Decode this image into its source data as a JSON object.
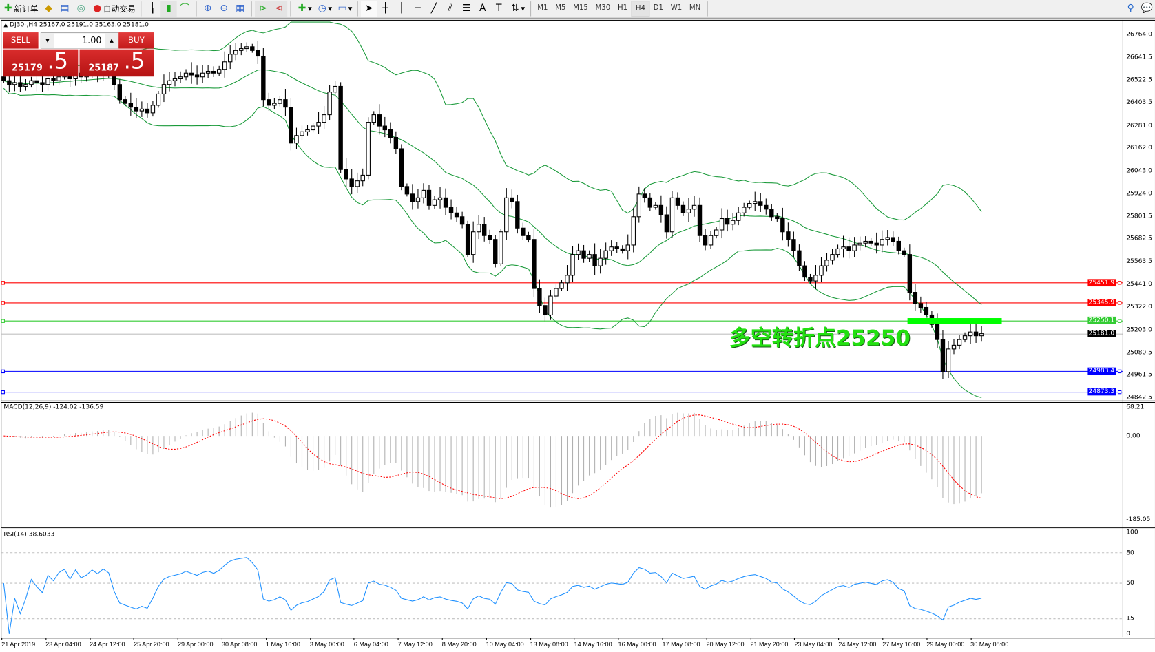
{
  "toolbar": {
    "new_order": "新订单",
    "auto_trading": "自动交易",
    "icons": [
      "new-order-icon",
      "market-watch-icon",
      "navigator-icon",
      "signals-icon",
      "auto-trading-icon",
      "bar-chart-icon",
      "candlestick-icon",
      "line-chart-icon",
      "zoom-in-icon",
      "zoom-out-icon",
      "tile-windows-icon",
      "autoscroll-icon",
      "chart-shift-icon",
      "indicators-icon",
      "periods-icon",
      "templates-icon",
      "cursor-icon",
      "crosshair-icon",
      "vertical-line-icon",
      "horizontal-line-icon",
      "trendline-icon",
      "equidistant-channel-icon",
      "fibonacci-icon",
      "text-icon",
      "text-label-icon",
      "arrows-icon",
      "search-icon",
      "chat-icon"
    ],
    "periods": [
      "M1",
      "M5",
      "M15",
      "M30",
      "H1",
      "H4",
      "D1",
      "W1",
      "MN"
    ],
    "active_period": "H4"
  },
  "chart": {
    "header": "DJ30-,H4  25167.0 25191.0 25163.0 25181.0",
    "trade_panel": {
      "sell": "SELL",
      "buy": "BUY",
      "lot": "1.00",
      "sell_big": "25179",
      "sell_small": ".5",
      "buy_big": "25187",
      "buy_small": ".5"
    },
    "annotation": "多空转折点25250",
    "annotation_color": "#22e010",
    "price_axis": [
      "26764.0",
      "26641.5",
      "26522.5",
      "26403.5",
      "26281.0",
      "26162.0",
      "26043.0",
      "25924.0",
      "25801.5",
      "25682.5",
      "25563.5",
      "25441.0",
      "25322.0",
      "25203.0",
      "25080.5",
      "24961.5",
      "24842.5"
    ],
    "levels": [
      {
        "price": "25451.9",
        "color": "#ff0000"
      },
      {
        "price": "25345.9",
        "color": "#ff0000"
      },
      {
        "price": "25250.1",
        "color": "#33cc33"
      },
      {
        "price": "25181.0",
        "color": "#000000",
        "line": "#c0c0c0"
      },
      {
        "price": "24983.4",
        "color": "#0000ff"
      },
      {
        "price": "24873.3",
        "color": "#0000ff"
      }
    ],
    "bands_color": "#1a9a3a",
    "closes": [
      26520,
      26500,
      26510,
      26490,
      26500,
      26520,
      26510,
      26500,
      26530,
      26520,
      26540,
      26550,
      26530,
      26560,
      26540,
      26550,
      26570,
      26560,
      26580,
      26570,
      26500,
      26420,
      26400,
      26380,
      26360,
      26370,
      26350,
      26390,
      26450,
      26500,
      26520,
      26530,
      26540,
      26560,
      26550,
      26540,
      26560,
      26570,
      26560,
      26580,
      26620,
      26660,
      26680,
      26690,
      26700,
      26680,
      26650,
      26420,
      26390,
      26400,
      26420,
      26380,
      26190,
      26230,
      26250,
      26260,
      26280,
      26300,
      26340,
      26460,
      26490,
      26050,
      26000,
      25960,
      25990,
      26020,
      26300,
      26340,
      26280,
      26260,
      26220,
      26160,
      25960,
      25920,
      25880,
      25900,
      25940,
      25860,
      25890,
      25900,
      25850,
      25820,
      25800,
      25760,
      25600,
      25720,
      25760,
      25700,
      25680,
      25550,
      25720,
      25900,
      25880,
      25740,
      25700,
      25680,
      25420,
      25330,
      25280,
      25380,
      25420,
      25450,
      25490,
      25600,
      25620,
      25580,
      25600,
      25540,
      25580,
      25620,
      25640,
      25630,
      25620,
      25650,
      25800,
      25920,
      25900,
      25850,
      25860,
      25810,
      25720,
      25900,
      25860,
      25820,
      25840,
      25860,
      25700,
      25650,
      25700,
      25730,
      25790,
      25760,
      25780,
      25820,
      25850,
      25870,
      25880,
      25860,
      25840,
      25800,
      25790,
      25720,
      25680,
      25620,
      25540,
      25480,
      25460,
      25490,
      25540,
      25570,
      25600,
      25630,
      25640,
      25620,
      25650,
      25660,
      25670,
      25660,
      25650,
      25680,
      25690,
      25670,
      25620,
      25600,
      25400,
      25340,
      25320,
      25280,
      25230,
      25150,
      24980,
      25100,
      25120,
      25150,
      25170,
      25190,
      25170,
      25181
    ]
  },
  "macd": {
    "label": "MACD(12,26,9) -124.02 -136.59",
    "axis": [
      "68.21",
      "0.00",
      "-185.05"
    ],
    "signal_color": "#ff0000"
  },
  "rsi": {
    "label": "RSI(14) 38.6033",
    "axis": [
      "100",
      "80",
      "50",
      "15",
      "0"
    ],
    "line_color": "#1e90ff"
  },
  "time_axis": [
    "21 Apr 2019",
    "23 Apr 04:00",
    "24 Apr 12:00",
    "25 Apr 20:00",
    "29 Apr 00:00",
    "30 Apr 08:00",
    "1 May 16:00",
    "3 May 00:00",
    "6 May 04:00",
    "7 May 12:00",
    "8 May 20:00",
    "10 May 04:00",
    "13 May 08:00",
    "14 May 16:00",
    "16 May 00:00",
    "17 May 08:00",
    "20 May 12:00",
    "21 May 20:00",
    "23 May 04:00",
    "24 May 12:00",
    "27 May 16:00",
    "29 May 00:00",
    "30 May 08:00"
  ]
}
